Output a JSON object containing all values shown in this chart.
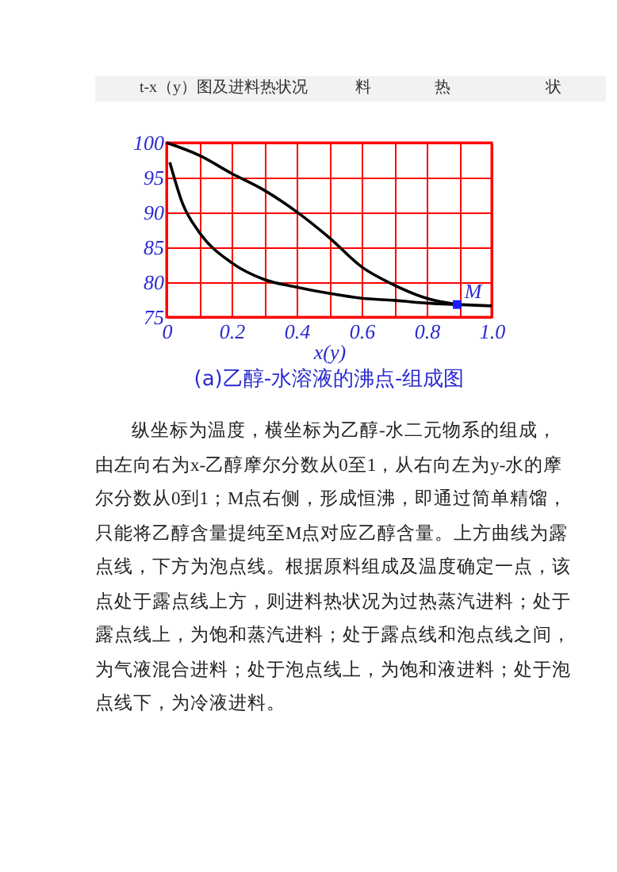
{
  "chart_data": {
    "type": "line",
    "title": "(a)乙醇-水溶液的沸点-组成图",
    "xlabel": "x(y)",
    "annotations": [
      "t-x（y）图及进料热状况　　　料　　　　热　　　　　　状",
      "纵坐标为温度，横坐标为乙醇-水二元物系的组成，由左向右为x-乙醇摩尔分数从0至1，从右向左为y-水的摩尔分数从0到1；M点右侧，形成恒沸，即通过简单精馏，只能将乙醇含量提纯至M点对应乙醇含量。上方曲线为露点线，下方为泡点线。根据原料组成及温度确定一点，该点处于露点线上方，则进料热状况为过热蒸汽进料；处于露点线上，为饱和蒸汽进料；处于露点线和泡点线之间，为气液混合进料；处于泡点线上，为饱和液进料；处于泡点线下，为冷液进料。",
      {
        "text": "M",
        "x": 0.894,
        "y": 76.8
      }
    ],
    "series": [
      {
        "color": "#000000",
        "x": [
          0,
          0.1,
          0.2,
          0.3,
          0.4,
          0.5,
          0.6,
          0.7,
          0.8,
          0.894
        ],
        "values": [
          100,
          98.2,
          95.6,
          93.2,
          90.1,
          86.4,
          82.2,
          79.6,
          77.7,
          76.8
        ]
      },
      {
        "color": "#000000",
        "x": [
          0.01,
          0.05,
          0.1,
          0.2,
          0.3,
          0.4,
          0.5,
          0.6,
          0.7,
          0.8,
          0.894,
          1
        ],
        "values": [
          97.2,
          91.2,
          87.2,
          82.8,
          80.4,
          79.3,
          78.4,
          77.7,
          77.4,
          77,
          76.8,
          76.6
        ]
      },
      {
        "type": "scatter",
        "marker": "square",
        "color": "#1a1aff",
        "x": [
          0.894
        ],
        "values": [
          76.8
        ]
      }
    ],
    "xlim": [
      0,
      1
    ],
    "xticks": [
      0,
      {
        "value": 0.1,
        "label": null
      },
      0.2,
      {
        "value": 0.3,
        "label": null
      },
      0.4,
      {
        "value": 0.5,
        "label": null
      },
      0.6,
      {
        "value": 0.7,
        "label": null
      },
      0.8,
      {
        "value": 0.9,
        "label": null
      },
      {
        "value": 1,
        "label": "1.0"
      }
    ],
    "ylim": [
      75,
      100
    ],
    "yticks": [
      75,
      80,
      85,
      90,
      95,
      100
    ],
    "grid": true
  }
}
